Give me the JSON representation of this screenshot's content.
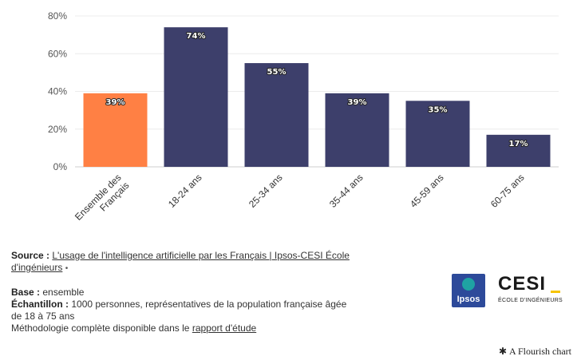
{
  "chart_data": {
    "type": "bar",
    "categories": [
      "Ensemble des Français",
      "18-24 ans",
      "25-34 ans",
      "35-44 ans",
      "45-59 ans",
      "60-75 ans"
    ],
    "category_lines": [
      [
        "Ensemble des",
        "Français"
      ],
      [
        "18-24 ans"
      ],
      [
        "25-34 ans"
      ],
      [
        "35-44 ans"
      ],
      [
        "45-59 ans"
      ],
      [
        "60-75 ans"
      ]
    ],
    "values": [
      39,
      74,
      55,
      39,
      35,
      17
    ],
    "value_labels": [
      "39%",
      "74%",
      "55%",
      "39%",
      "35%",
      "17%"
    ],
    "colors": [
      "#ff8044",
      "#3d3f6b",
      "#3d3f6b",
      "#3d3f6b",
      "#3d3f6b",
      "#3d3f6b"
    ],
    "yticks": [
      0,
      20,
      40,
      60,
      80
    ],
    "ytick_labels": [
      "0%",
      "20%",
      "40%",
      "60%",
      "80%"
    ],
    "ylim": [
      0,
      80
    ],
    "grid": true,
    "legend": "none",
    "title": "",
    "xlabel": "",
    "ylabel": ""
  },
  "footer": {
    "source_label": "Source :",
    "source_link": "L'usage de l'intelligence artificielle par les Français | Ipsos-CESI École d'ingénieurs",
    "source_dot": "•",
    "base_label": "Base :",
    "base_value": "ensemble",
    "sample_label": "Échantillon :",
    "sample_value": "1000 personnes, représentatives de la population française âgée de 18 à 75 ans",
    "method_text": "Méthodologie complète disponible dans le",
    "method_link": "rapport d'étude"
  },
  "logos": {
    "ipsos_text": "Ipsos",
    "cesi_text": "CESI",
    "cesi_subtitle": "ÉCOLE D'INGÉNIEURS"
  },
  "credit": {
    "icon": "asterisk-icon",
    "text": "A Flourish chart"
  }
}
